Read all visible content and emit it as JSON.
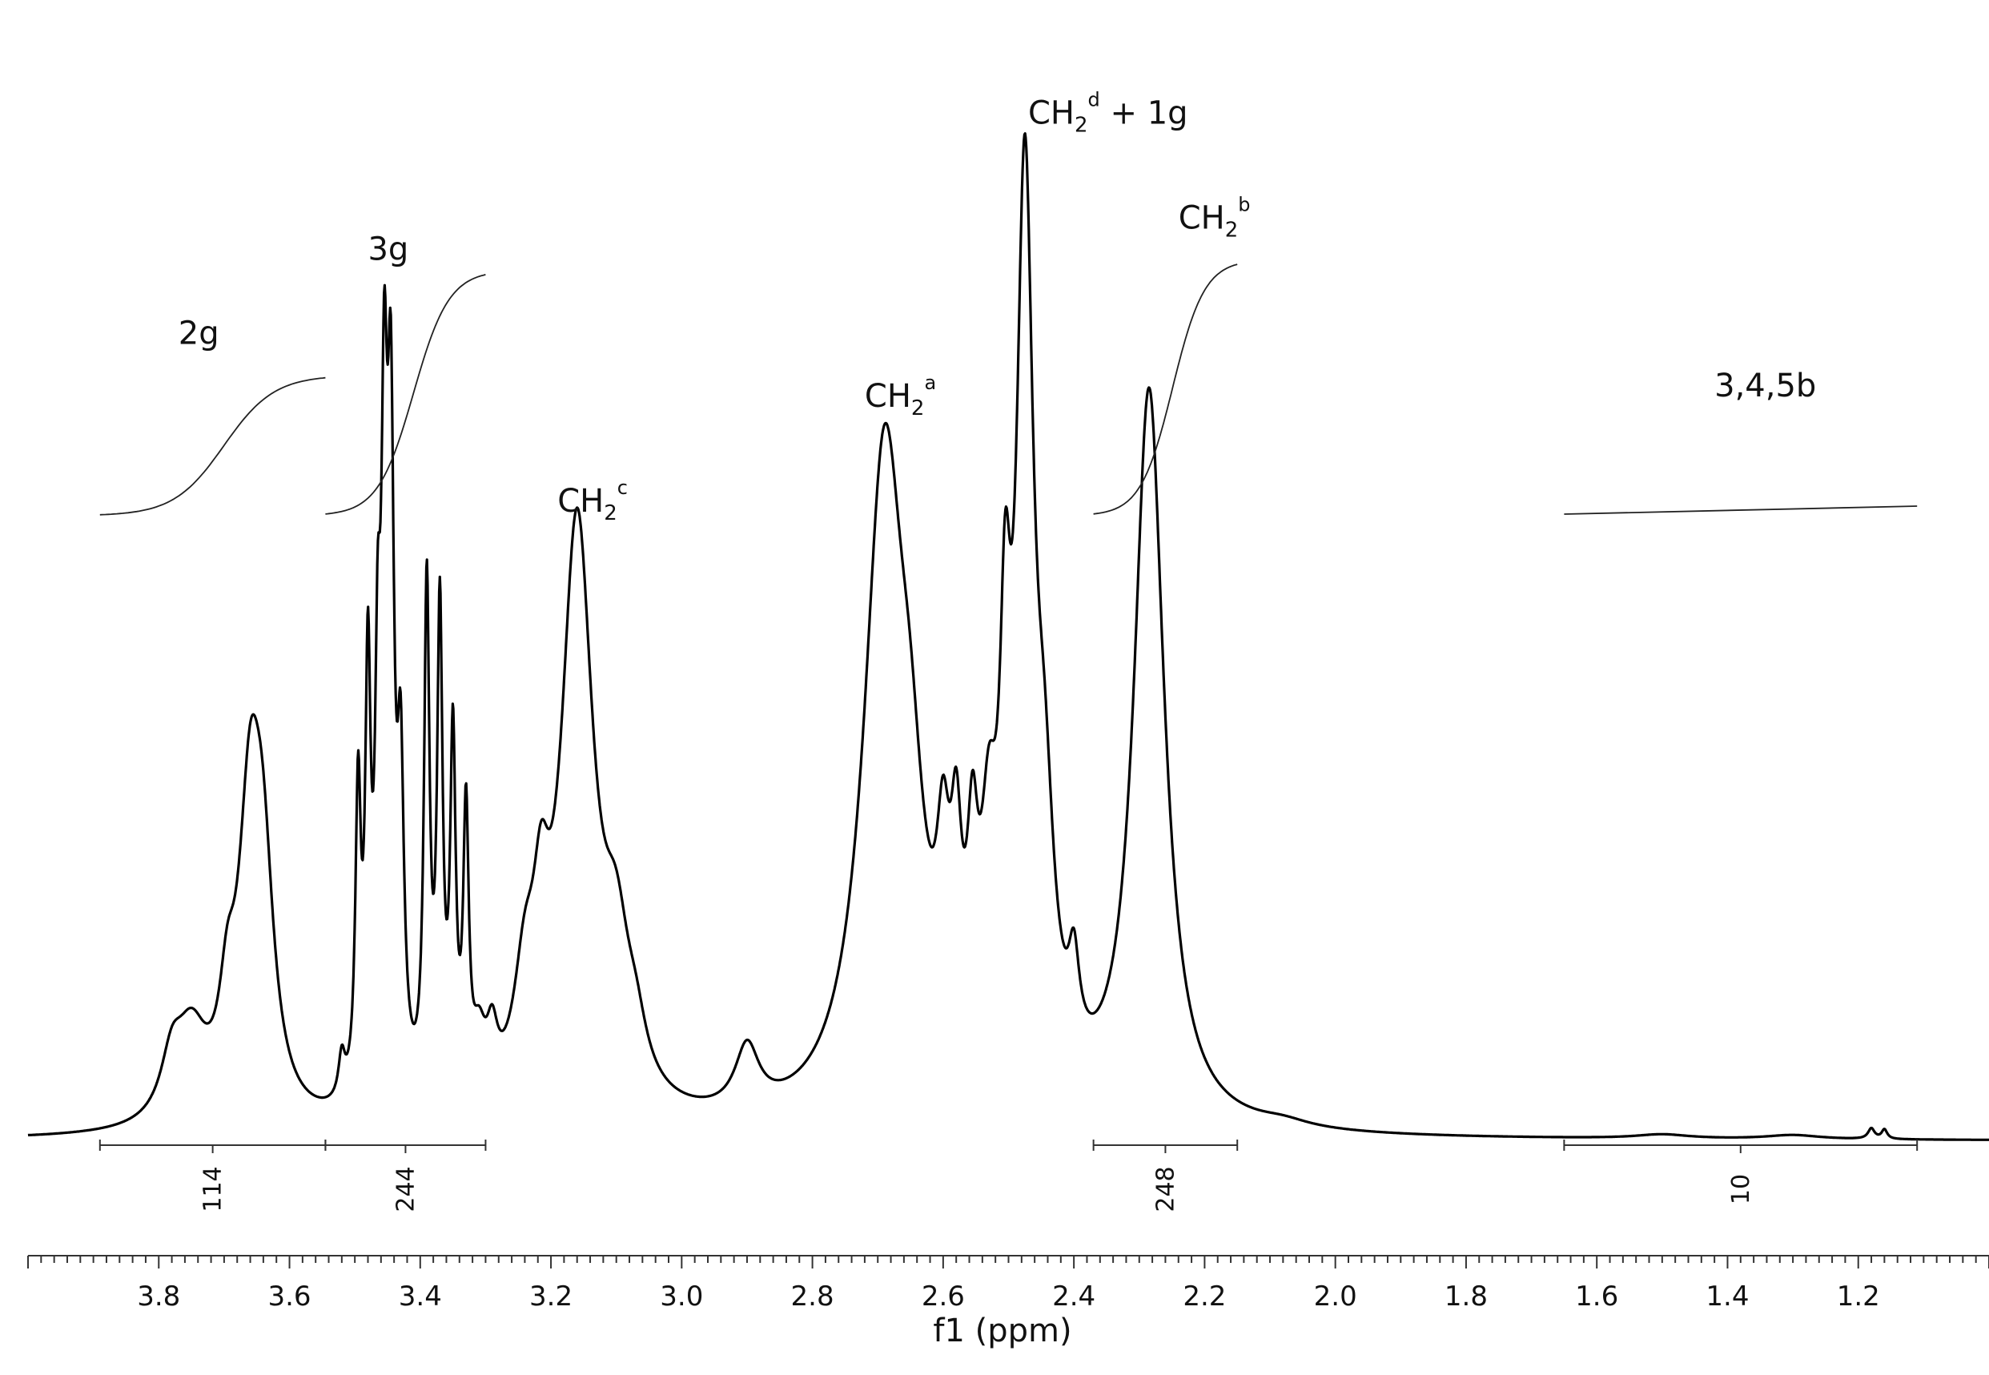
{
  "chart_data": {
    "type": "line",
    "title": "",
    "xlabel": "f1 (ppm)",
    "ylabel": "",
    "x_reversed": true,
    "xlim": [
      4.0,
      1.0
    ],
    "ylim": [
      0,
      1.0
    ],
    "grid": false,
    "x_tick_labels": [
      "3.8",
      "3.6",
      "3.4",
      "3.2",
      "3.0",
      "2.8",
      "2.6",
      "2.4",
      "2.2",
      "2.0",
      "1.8",
      "1.6",
      "1.4",
      "1.2"
    ],
    "peaks": [
      {
        "ppm": 3.66,
        "height": 0.28,
        "width": 0.022
      },
      {
        "ppm": 3.64,
        "height": 0.18,
        "width": 0.02
      },
      {
        "ppm": 3.75,
        "height": 0.08,
        "width": 0.03
      },
      {
        "ppm": 3.78,
        "height": 0.05,
        "width": 0.02
      },
      {
        "ppm": 3.695,
        "height": 0.08,
        "width": 0.015
      },
      {
        "ppm": 3.52,
        "height": 0.04,
        "width": 0.006
      },
      {
        "ppm": 3.495,
        "height": 0.28,
        "width": 0.005
      },
      {
        "ppm": 3.48,
        "height": 0.38,
        "width": 0.005
      },
      {
        "ppm": 3.465,
        "height": 0.3,
        "width": 0.005
      },
      {
        "ppm": 3.455,
        "height": 0.55,
        "width": 0.006
      },
      {
        "ppm": 3.445,
        "height": 0.55,
        "width": 0.006
      },
      {
        "ppm": 3.43,
        "height": 0.28,
        "width": 0.006
      },
      {
        "ppm": 3.39,
        "height": 0.48,
        "width": 0.005
      },
      {
        "ppm": 3.37,
        "height": 0.45,
        "width": 0.005
      },
      {
        "ppm": 3.35,
        "height": 0.33,
        "width": 0.005
      },
      {
        "ppm": 3.33,
        "height": 0.26,
        "width": 0.005
      },
      {
        "ppm": 3.31,
        "height": 0.05,
        "width": 0.012
      },
      {
        "ppm": 3.29,
        "height": 0.05,
        "width": 0.01
      },
      {
        "ppm": 3.24,
        "height": 0.1,
        "width": 0.02
      },
      {
        "ppm": 3.215,
        "height": 0.12,
        "width": 0.015
      },
      {
        "ppm": 3.16,
        "height": 0.56,
        "width": 0.03
      },
      {
        "ppm": 3.1,
        "height": 0.12,
        "width": 0.025
      },
      {
        "ppm": 3.07,
        "height": 0.04,
        "width": 0.02
      },
      {
        "ppm": 2.9,
        "height": 0.06,
        "width": 0.022
      },
      {
        "ppm": 2.69,
        "height": 0.62,
        "width": 0.038
      },
      {
        "ppm": 2.65,
        "height": 0.15,
        "width": 0.025
      },
      {
        "ppm": 2.6,
        "height": 0.15,
        "width": 0.012
      },
      {
        "ppm": 2.58,
        "height": 0.16,
        "width": 0.01
      },
      {
        "ppm": 2.555,
        "height": 0.16,
        "width": 0.01
      },
      {
        "ppm": 2.53,
        "height": 0.18,
        "width": 0.015
      },
      {
        "ppm": 2.505,
        "height": 0.3,
        "width": 0.01
      },
      {
        "ppm": 2.475,
        "height": 0.82,
        "width": 0.016
      },
      {
        "ppm": 2.445,
        "height": 0.2,
        "width": 0.018
      },
      {
        "ppm": 2.4,
        "height": 0.08,
        "width": 0.01
      },
      {
        "ppm": 2.285,
        "height": 0.7,
        "width": 0.028
      },
      {
        "ppm": 2.08,
        "height": 0.006,
        "width": 0.05
      },
      {
        "ppm": 1.5,
        "height": 0.004,
        "width": 0.05
      },
      {
        "ppm": 1.3,
        "height": 0.004,
        "width": 0.05
      },
      {
        "ppm": 1.18,
        "height": 0.01,
        "width": 0.006
      },
      {
        "ppm": 1.16,
        "height": 0.009,
        "width": 0.005
      }
    ],
    "integrals": [
      {
        "from": 3.89,
        "to": 3.545,
        "value": "114",
        "curve_top": 0.73
      },
      {
        "from": 3.545,
        "to": 3.3,
        "value": "244",
        "curve_top": 0.83
      },
      {
        "from": 2.37,
        "to": 2.15,
        "value": "248",
        "curve_top": 0.84
      },
      {
        "from": 1.65,
        "to": 1.11,
        "value": "10",
        "curve_top": 0.66
      }
    ],
    "annotations": [
      {
        "id": "2g",
        "text": "2g",
        "ppm": 3.77,
        "y": 0.76
      },
      {
        "id": "3g",
        "text": "3g",
        "ppm": 3.48,
        "y": 0.84
      },
      {
        "id": "ch2c",
        "text": "CH",
        "sub": "2",
        "sup": "c",
        "ppm": 3.19,
        "y": 0.6
      },
      {
        "id": "ch2a",
        "text": "CH",
        "sub": "2",
        "sup": "a",
        "ppm": 2.72,
        "y": 0.7
      },
      {
        "id": "ch2d",
        "text": "CH",
        "sub": "2",
        "sup": "d",
        "suffix": " + 1g",
        "ppm": 2.47,
        "y": 0.97
      },
      {
        "id": "ch2b",
        "text": "CH",
        "sub": "2",
        "sup": "b",
        "ppm": 2.24,
        "y": 0.87
      },
      {
        "id": "345b",
        "text": "3,4,5b",
        "ppm": 1.42,
        "y": 0.71
      }
    ]
  }
}
